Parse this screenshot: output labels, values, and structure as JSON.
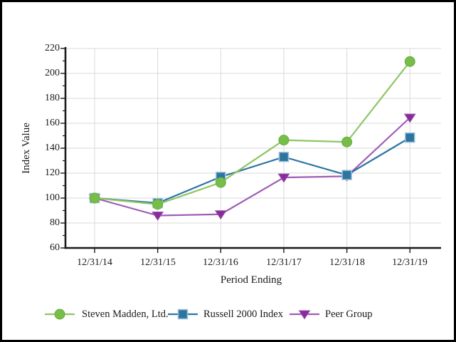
{
  "figure": {
    "background_color": "#ffffff",
    "border_color": "#000000",
    "gridline_color": "#d9d9d9",
    "axis_color": "#1a1a1a"
  },
  "chart_data": {
    "type": "line",
    "title": "",
    "xlabel": "Period Ending",
    "ylabel": "Index Value",
    "x_categories": [
      "12/31/14",
      "12/31/15",
      "12/31/16",
      "12/31/17",
      "12/31/18",
      "12/31/19"
    ],
    "y_ticks": [
      60,
      80,
      100,
      120,
      140,
      160,
      180,
      200,
      220
    ],
    "ylim": [
      60,
      220
    ],
    "grid": true,
    "legend_position": "bottom",
    "series": [
      {
        "name": "Steven Madden, Ltd.",
        "marker": "circle",
        "color": "#77BD4A",
        "marker_stroke": "#69AC3C",
        "line_color": "#8CC663",
        "values": [
          100,
          95,
          112.5,
          146.5,
          145,
          209.5
        ]
      },
      {
        "name": "Russell 2000 Index",
        "marker": "square",
        "color": "#2E74A1",
        "marker_stroke": "#9CC2D8",
        "line_color": "#2E74A1",
        "values": [
          100,
          96,
          117,
          133,
          118.5,
          148.5
        ]
      },
      {
        "name": "Peer Group",
        "marker": "triangle-down",
        "color": "#862D9B",
        "marker_stroke": "#9A4FAE",
        "line_color": "#A05DB5",
        "values": [
          100,
          86,
          87,
          116.5,
          117.5,
          164.5
        ]
      }
    ]
  }
}
